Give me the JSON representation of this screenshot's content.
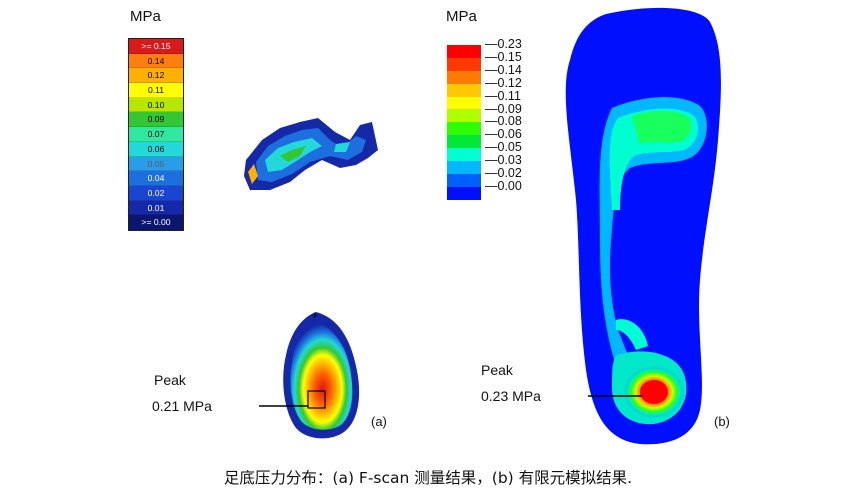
{
  "panel_a": {
    "unit": "MPa",
    "legend": [
      {
        "label": ">= 0.15",
        "color": "#d81a1a",
        "text_color": "#ffffff"
      },
      {
        "label": "0.14",
        "color": "#ff7f0e",
        "text_color": "#000000"
      },
      {
        "label": "0.12",
        "color": "#ffb000",
        "text_color": "#000000"
      },
      {
        "label": "0.11",
        "color": "#ffff00",
        "text_color": "#000000"
      },
      {
        "label": "0.10",
        "color": "#b8e600",
        "text_color": "#000000"
      },
      {
        "label": "0.09",
        "color": "#33c833",
        "text_color": "#000000"
      },
      {
        "label": "0.07",
        "color": "#2ee8a0",
        "text_color": "#000000"
      },
      {
        "label": "0.06",
        "color": "#22d8d8",
        "text_color": "#000000"
      },
      {
        "label": "0.05",
        "color": "#2a9de8",
        "text_color": "#5b5b5b"
      },
      {
        "label": "0.04",
        "color": "#1d6fe0",
        "text_color": "#ffffff"
      },
      {
        "label": "0.02",
        "color": "#1a45d0",
        "text_color": "#ffffff"
      },
      {
        "label": "0.01",
        "color": "#1428a8",
        "text_color": "#ffffff"
      },
      {
        "label": ">= 0.00",
        "color": "#0a1670",
        "text_color": "#ffffff"
      }
    ],
    "peak_title": "Peak",
    "peak_value": "0.21 MPa",
    "tag": "(a)"
  },
  "panel_b": {
    "unit": "MPa",
    "legend_colors": [
      "#ff0000",
      "#ff3a00",
      "#ff7a00",
      "#ffc800",
      "#ffff00",
      "#b0ff00",
      "#2eff00",
      "#00e838",
      "#00ffd0",
      "#00b8ff",
      "#0060ff",
      "#0010ff"
    ],
    "legend_labels": [
      "0.23",
      "0.15",
      "0.14",
      "0.12",
      "0.11",
      "0.09",
      "0.08",
      "0.06",
      "0.05",
      "0.03",
      "0.02",
      "0.00"
    ],
    "peak_title": "Peak",
    "peak_value": "0.23 MPa",
    "tag": "(b)"
  },
  "caption": "足底压力分布：(a) F-scan 测量结果，(b) 有限元模拟结果."
}
